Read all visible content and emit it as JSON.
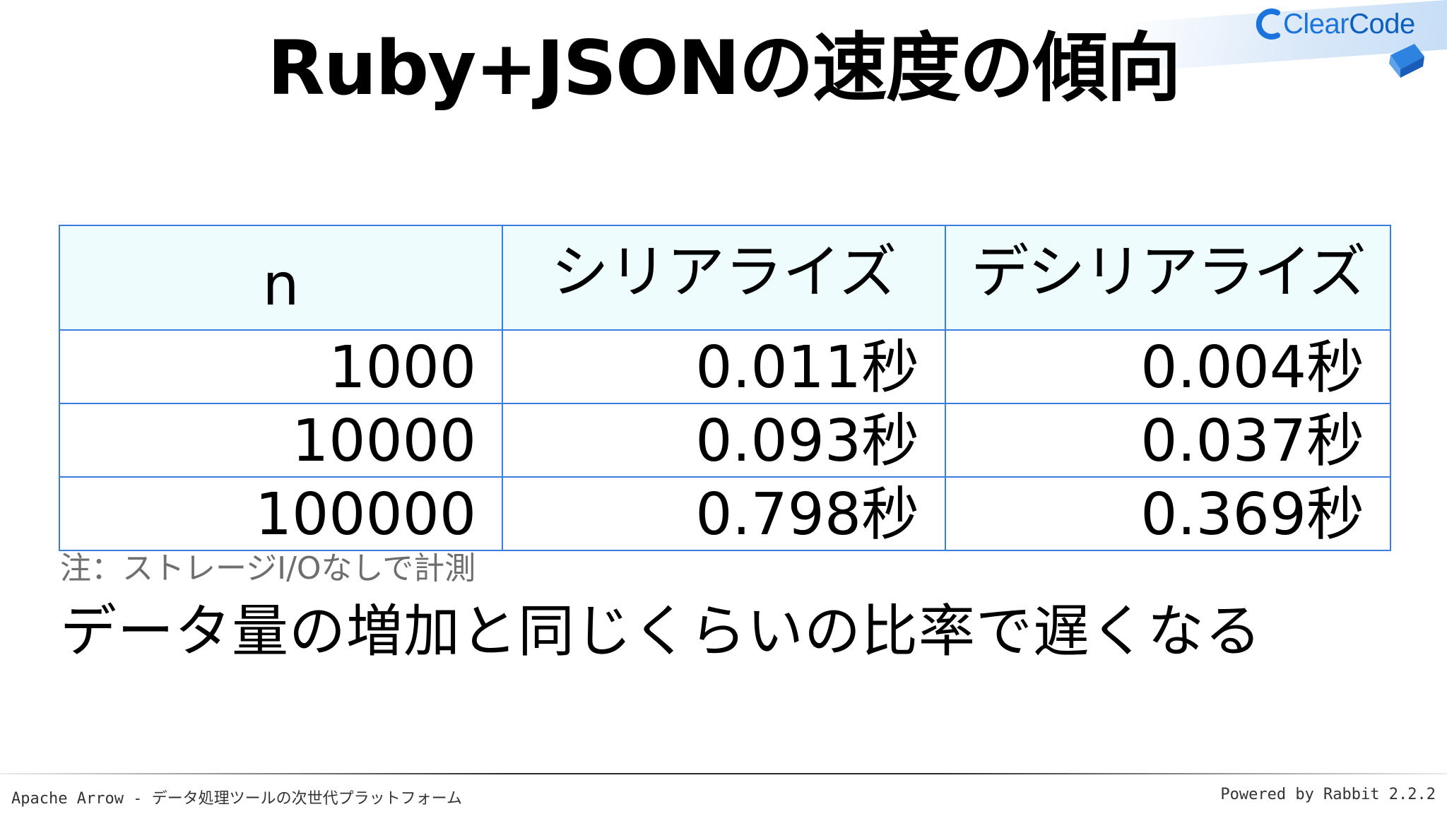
{
  "logo": {
    "brand_a": "Clear",
    "brand_b": "Code"
  },
  "slide": {
    "title": "Ruby+JSONの速度の傾向",
    "note": "注：ストレージI/Oなしで計測",
    "statement": "データ量の増加と同じくらいの比率で遅くなる"
  },
  "table": {
    "headers": [
      "n",
      "シリアライズ",
      "デシリアライズ"
    ],
    "rows": [
      [
        "1000",
        "0.011秒",
        "0.004秒"
      ],
      [
        "10000",
        "0.093秒",
        "0.037秒"
      ],
      [
        "100000",
        "0.798秒",
        "0.369秒"
      ]
    ]
  },
  "footer": {
    "left": "Apache Arrow - データ処理ツールの次世代プラットフォーム",
    "right": "Powered by Rabbit 2.2.2"
  },
  "colors": {
    "table_border": "#3b7ddd",
    "header_bg": "#eefcfd",
    "logo_blue": "#1b74de"
  }
}
